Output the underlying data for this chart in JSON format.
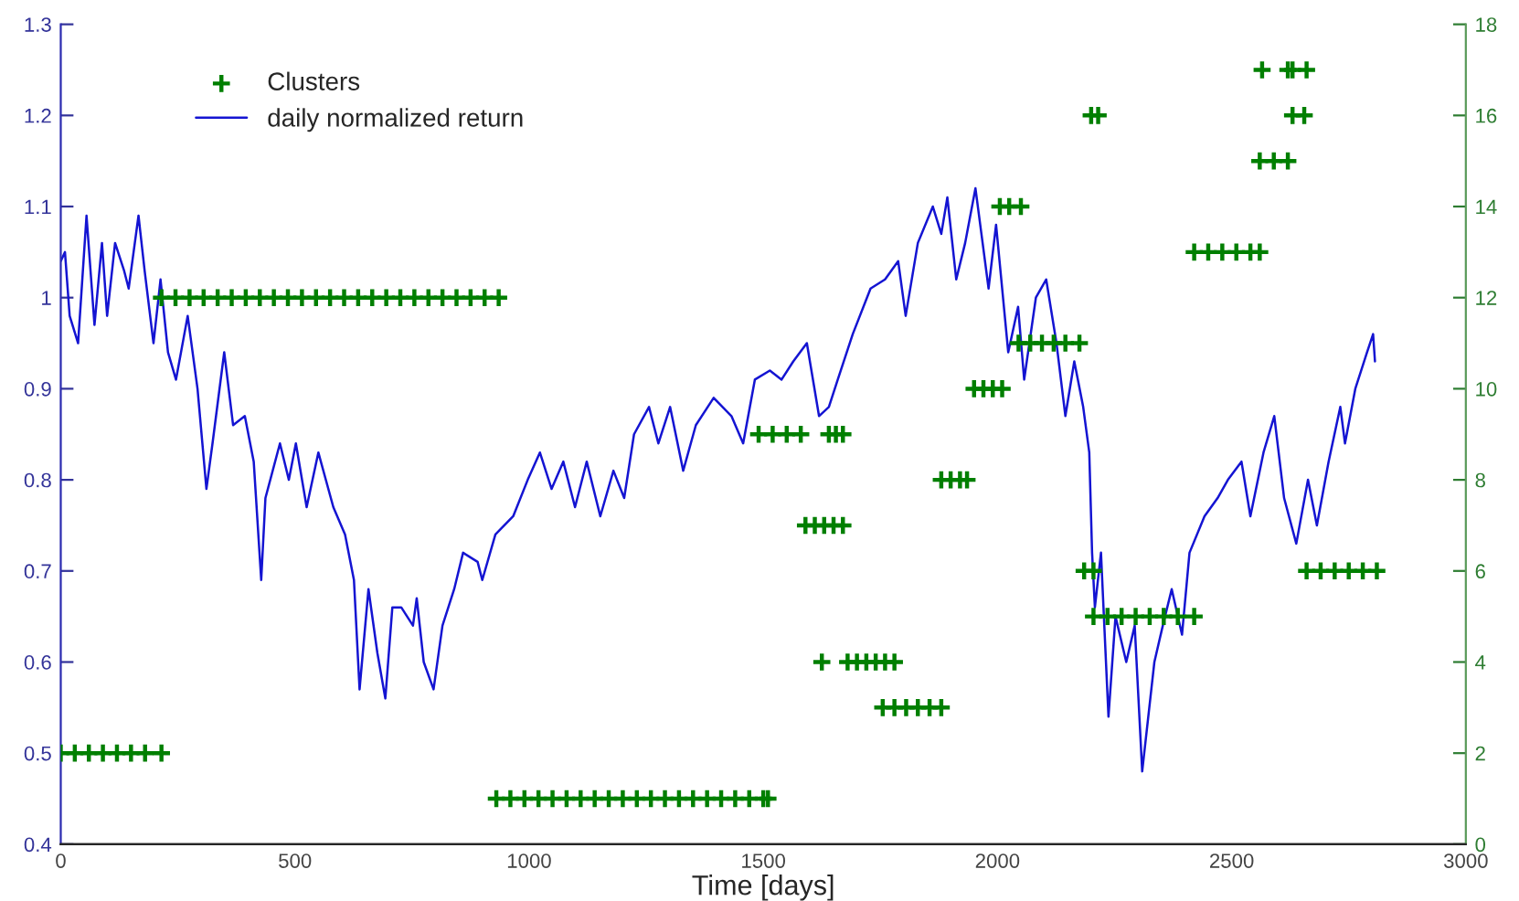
{
  "chart_data": {
    "type": "line",
    "xlabel": "Time [days]",
    "xlim": [
      0,
      3000
    ],
    "xticks": [
      0,
      500,
      1000,
      1500,
      2000,
      2500,
      3000
    ],
    "ylim": [
      0.4,
      1.3
    ],
    "yticks": [
      0.4,
      0.5,
      0.6,
      0.7,
      0.8,
      0.9,
      1,
      1.1,
      1.2,
      1.3
    ],
    "y2lim": [
      0,
      18
    ],
    "y2ticks": [
      0,
      2,
      4,
      6,
      8,
      10,
      12,
      14,
      16,
      18
    ],
    "grid": false,
    "legend": "top left",
    "series": [
      {
        "name": "Clusters",
        "type": "scatter",
        "axis": "y2",
        "color": "#007f00",
        "marker": "cross",
        "x": [
          0,
          30,
          60,
          90,
          120,
          150,
          180,
          215,
          215,
          245,
          275,
          305,
          335,
          365,
          395,
          425,
          455,
          485,
          515,
          545,
          575,
          605,
          635,
          665,
          695,
          725,
          755,
          785,
          815,
          845,
          875,
          905,
          935,
          930,
          960,
          990,
          1020,
          1050,
          1080,
          1110,
          1140,
          1170,
          1200,
          1230,
          1260,
          1290,
          1320,
          1350,
          1380,
          1410,
          1440,
          1470,
          1500,
          1510,
          1490,
          1520,
          1550,
          1580,
          1640,
          1655,
          1670,
          1590,
          1610,
          1630,
          1650,
          1670,
          1625,
          1680,
          1700,
          1720,
          1740,
          1760,
          1780,
          1755,
          1780,
          1805,
          1830,
          1855,
          1880,
          1880,
          1900,
          1920,
          1935,
          1950,
          1970,
          1990,
          2010,
          2005,
          2025,
          2050,
          2045,
          2070,
          2095,
          2120,
          2145,
          2175,
          2200,
          2215,
          2185,
          2205,
          2205,
          2235,
          2265,
          2295,
          2325,
          2355,
          2385,
          2420,
          2420,
          2450,
          2480,
          2510,
          2540,
          2560,
          2560,
          2590,
          2620,
          2565,
          2620,
          2630,
          2660,
          2630,
          2655,
          2660,
          2690,
          2720,
          2750,
          2780,
          2810
        ],
        "values": [
          2,
          2,
          2,
          2,
          2,
          2,
          2,
          2,
          12,
          12,
          12,
          12,
          12,
          12,
          12,
          12,
          12,
          12,
          12,
          12,
          12,
          12,
          12,
          12,
          12,
          12,
          12,
          12,
          12,
          12,
          12,
          12,
          12,
          1,
          1,
          1,
          1,
          1,
          1,
          1,
          1,
          1,
          1,
          1,
          1,
          1,
          1,
          1,
          1,
          1,
          1,
          1,
          1,
          1,
          9,
          9,
          9,
          9,
          9,
          9,
          9,
          7,
          7,
          7,
          7,
          7,
          4,
          4,
          4,
          4,
          4,
          4,
          4,
          3,
          3,
          3,
          3,
          3,
          3,
          8,
          8,
          8,
          8,
          10,
          10,
          10,
          10,
          14,
          14,
          14,
          11,
          11,
          11,
          11,
          11,
          11,
          16,
          16,
          6,
          6,
          5,
          5,
          5,
          5,
          5,
          5,
          5,
          5,
          13,
          13,
          13,
          13,
          13,
          13,
          15,
          15,
          15,
          17,
          17,
          17,
          17,
          16,
          16,
          6,
          6,
          6,
          6,
          6,
          6
        ]
      },
      {
        "name": "daily normalized return",
        "color": "#1414d2",
        "marker": "none",
        "line_style": "solid",
        "x": [
          0,
          9,
          19,
          37,
          55,
          72,
          88,
          99,
          116,
          135,
          145,
          166,
          179,
          198,
          213,
          229,
          246,
          271,
          292,
          311,
          324,
          349,
          368,
          393,
          412,
          428,
          437,
          468,
          487,
          502,
          525,
          550,
          582,
          607,
          626,
          638,
          657,
          676,
          693,
          708,
          727,
          752,
          760,
          775,
          796,
          815,
          840,
          859,
          890,
          900,
          928,
          966,
          997,
          1023,
          1048,
          1073,
          1098,
          1123,
          1152,
          1180,
          1203,
          1224,
          1256,
          1276,
          1301,
          1329,
          1356,
          1394,
          1432,
          1457,
          1482,
          1514,
          1539,
          1564,
          1593,
          1619,
          1640,
          1659,
          1691,
          1729,
          1760,
          1788,
          1804,
          1830,
          1862,
          1880,
          1893,
          1912,
          1931,
          1953,
          1981,
          1997,
          2023,
          2044,
          2057,
          2082,
          2104,
          2126,
          2145,
          2164,
          2183,
          2196,
          2202,
          2208,
          2221,
          2237,
          2252,
          2275,
          2293,
          2309,
          2335,
          2353,
          2372,
          2394,
          2410,
          2442,
          2470,
          2492,
          2521,
          2540,
          2568,
          2591,
          2612,
          2638,
          2663,
          2682,
          2707,
          2732,
          2742,
          2764,
          2789,
          2802,
          2806
        ],
        "values": [
          1.04,
          1.05,
          0.98,
          0.95,
          1.09,
          0.97,
          1.06,
          0.98,
          1.06,
          1.03,
          1.01,
          1.09,
          1.03,
          0.95,
          1.02,
          0.94,
          0.91,
          0.98,
          0.9,
          0.79,
          0.84,
          0.94,
          0.86,
          0.87,
          0.82,
          0.69,
          0.78,
          0.84,
          0.8,
          0.84,
          0.77,
          0.83,
          0.77,
          0.74,
          0.69,
          0.57,
          0.68,
          0.61,
          0.56,
          0.66,
          0.66,
          0.64,
          0.67,
          0.6,
          0.57,
          0.64,
          0.68,
          0.72,
          0.71,
          0.69,
          0.74,
          0.76,
          0.8,
          0.83,
          0.79,
          0.82,
          0.77,
          0.82,
          0.76,
          0.81,
          0.78,
          0.85,
          0.88,
          0.84,
          0.88,
          0.81,
          0.86,
          0.89,
          0.87,
          0.84,
          0.91,
          0.92,
          0.91,
          0.93,
          0.95,
          0.87,
          0.88,
          0.91,
          0.96,
          1.01,
          1.02,
          1.04,
          0.98,
          1.06,
          1.1,
          1.07,
          1.11,
          1.02,
          1.06,
          1.12,
          1.01,
          1.08,
          0.94,
          0.99,
          0.91,
          1.0,
          1.02,
          0.95,
          0.87,
          0.93,
          0.88,
          0.83,
          0.72,
          0.66,
          0.72,
          0.54,
          0.65,
          0.6,
          0.64,
          0.48,
          0.6,
          0.64,
          0.68,
          0.63,
          0.72,
          0.76,
          0.78,
          0.8,
          0.82,
          0.76,
          0.83,
          0.87,
          0.78,
          0.73,
          0.8,
          0.75,
          0.82,
          0.88,
          0.84,
          0.9,
          0.94,
          0.96,
          0.93
        ]
      }
    ]
  }
}
